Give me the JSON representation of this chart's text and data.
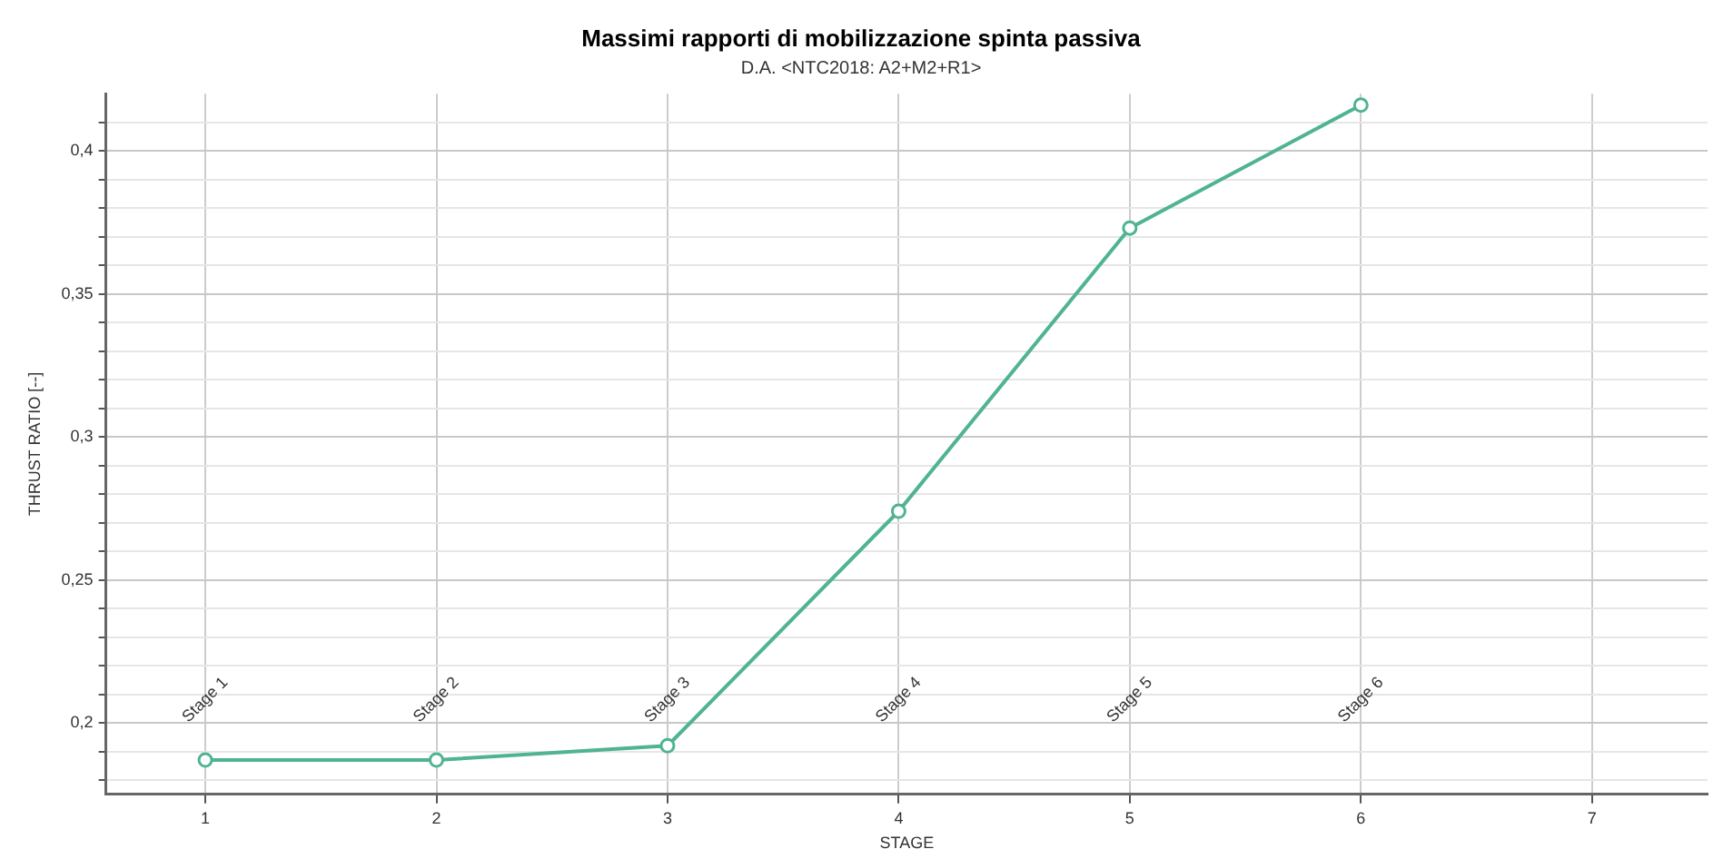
{
  "chart_data": {
    "type": "line",
    "title": "Massimi rapporti di mobilizzazione spinta passiva",
    "subtitle": "D.A. <NTC2018: A2+M2+R1>",
    "xlabel": "STAGE",
    "ylabel": "THRUST RATIO [--]",
    "x": [
      1,
      2,
      3,
      4,
      5,
      6
    ],
    "series": [
      {
        "color": "#4fb48f",
        "values": [
          0.187,
          0.187,
          0.192,
          0.274,
          0.373,
          0.416
        ]
      }
    ],
    "xlim": [
      0.57,
      7.5
    ],
    "xticks": [
      1,
      2,
      3,
      4,
      5,
      6,
      7
    ],
    "ylim": [
      0.175,
      0.42
    ],
    "yticks": [
      {
        "value": 0.18,
        "label": null
      },
      {
        "value": 0.19,
        "label": null
      },
      {
        "value": 0.2,
        "label": "0,2"
      },
      {
        "value": 0.21,
        "label": null
      },
      {
        "value": 0.22,
        "label": null
      },
      {
        "value": 0.23,
        "label": null
      },
      {
        "value": 0.24,
        "label": null
      },
      {
        "value": 0.25,
        "label": "0,25"
      },
      {
        "value": 0.26,
        "label": null
      },
      {
        "value": 0.27,
        "label": null
      },
      {
        "value": 0.28,
        "label": null
      },
      {
        "value": 0.29,
        "label": null
      },
      {
        "value": 0.3,
        "label": "0,3"
      },
      {
        "value": 0.31,
        "label": null
      },
      {
        "value": 0.32,
        "label": null
      },
      {
        "value": 0.33,
        "label": null
      },
      {
        "value": 0.34,
        "label": null
      },
      {
        "value": 0.35,
        "label": "0,35"
      },
      {
        "value": 0.36,
        "label": null
      },
      {
        "value": 0.37,
        "label": null
      },
      {
        "value": 0.38,
        "label": null
      },
      {
        "value": 0.39,
        "label": null
      },
      {
        "value": 0.4,
        "label": "0,4"
      },
      {
        "value": 0.41,
        "label": null
      }
    ],
    "annotations": [
      "Stage 1",
      "Stage 2",
      "Stage 3",
      "Stage 4",
      "Stage 5",
      "Stage 6"
    ],
    "grid": true,
    "legend": false,
    "marker": "circle",
    "line_style": "solid"
  }
}
